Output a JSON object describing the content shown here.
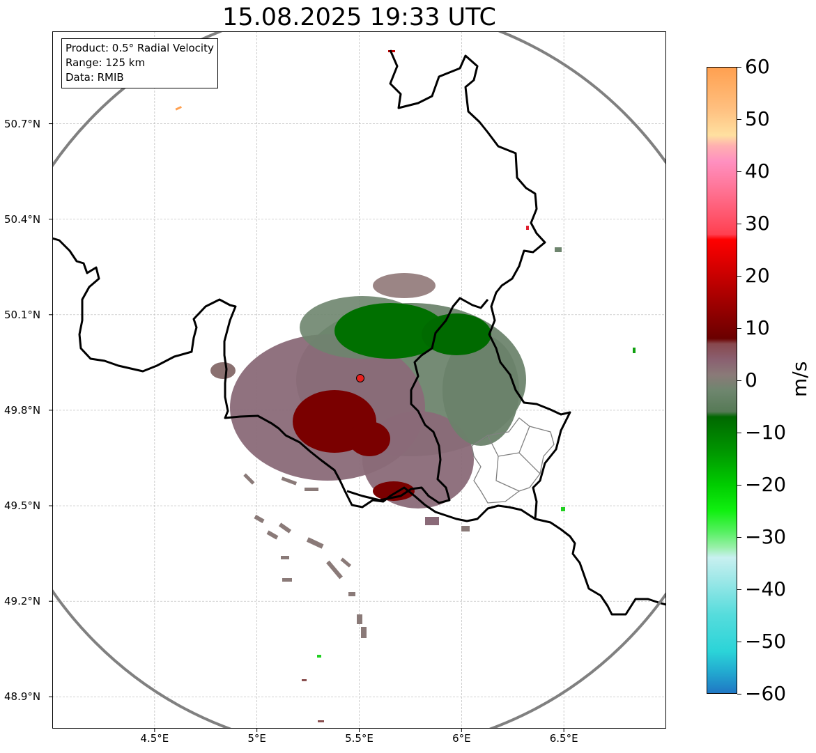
{
  "title": "15.08.2025 19:33 UTC",
  "info_box": {
    "product": "Product: 0.5° Radial Velocity",
    "range": "Range: 125 km",
    "source": "Data: RMIB"
  },
  "axes": {
    "lat_ticks": [
      "50.7°N",
      "50.4°N",
      "50.1°N",
      "49.8°N",
      "49.5°N",
      "49.2°N",
      "48.9°N"
    ],
    "lon_ticks": [
      "4.5°E",
      "5°E",
      "5.5°E",
      "6°E",
      "6.5°E"
    ],
    "lat_values": [
      50.7,
      50.4,
      50.1,
      49.8,
      49.5,
      49.2,
      48.9
    ],
    "lon_values": [
      4.5,
      5.0,
      5.5,
      6.0,
      6.5
    ],
    "lat_range": [
      48.8,
      50.99
    ],
    "lon_range": [
      4.0,
      7.0
    ]
  },
  "radar": {
    "site_lat": 49.915,
    "site_lon": 5.505,
    "range_km": 125,
    "marker_color": "#e8201e"
  },
  "colorbar": {
    "label": "m/s",
    "min": -60,
    "max": 60,
    "ticks": [
      "60",
      "50",
      "40",
      "30",
      "20",
      "10",
      "0",
      "−10",
      "−20",
      "−30",
      "−40",
      "−50",
      "−60"
    ],
    "tick_values": [
      60,
      50,
      40,
      30,
      20,
      10,
      0,
      -10,
      -20,
      -30,
      -40,
      -50,
      -60
    ],
    "stops": [
      {
        "v": -60,
        "c": "#1f77c4"
      },
      {
        "v": -56,
        "c": "#22a9d0"
      },
      {
        "v": -52,
        "c": "#2bd4d8"
      },
      {
        "v": -45,
        "c": "#55dcdc"
      },
      {
        "v": -38,
        "c": "#a0e8e8"
      },
      {
        "v": -34,
        "c": "#c8f0f0"
      },
      {
        "v": -32,
        "c": "#98f0a8"
      },
      {
        "v": -29,
        "c": "#55f060"
      },
      {
        "v": -25,
        "c": "#10f010"
      },
      {
        "v": -20,
        "c": "#00cc00"
      },
      {
        "v": -14,
        "c": "#009900"
      },
      {
        "v": -7,
        "c": "#006800"
      },
      {
        "v": -6,
        "c": "#567a56"
      },
      {
        "v": -2,
        "c": "#6e866e"
      },
      {
        "v": 1,
        "c": "#8a7a78"
      },
      {
        "v": 4,
        "c": "#8a6070"
      },
      {
        "v": 7,
        "c": "#88484e"
      },
      {
        "v": 8,
        "c": "#6a0000"
      },
      {
        "v": 15,
        "c": "#a00000"
      },
      {
        "v": 27,
        "c": "#ff0000"
      },
      {
        "v": 28,
        "c": "#ff4050"
      },
      {
        "v": 36,
        "c": "#ff7090"
      },
      {
        "v": 42,
        "c": "#ff90c0"
      },
      {
        "v": 45,
        "c": "#ffb0b0"
      },
      {
        "v": 47,
        "c": "#ffe0a0"
      },
      {
        "v": 52,
        "c": "#ffc080"
      },
      {
        "v": 60,
        "c": "#ffa050"
      }
    ]
  },
  "echo_colors": {
    "outbound_strong": "#7a0000",
    "outbound_weak": "#8a6a75",
    "near_zero": "#6e8a6e",
    "inbound_strong": "#007000",
    "noise": "#8a7070"
  }
}
